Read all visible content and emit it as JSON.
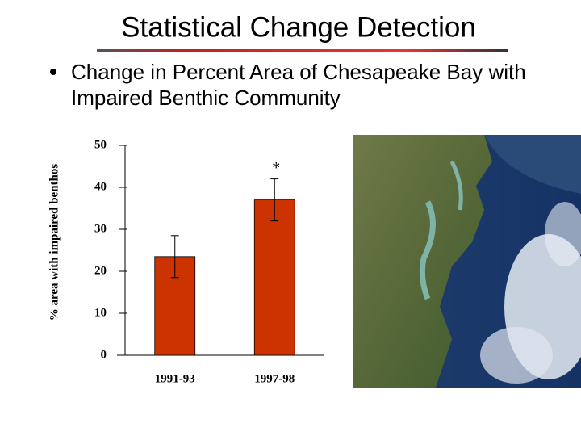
{
  "header": {
    "title": "Statistical Change Detection",
    "bullet_lines": [
      "Change in Percent Area of Chesapeake Bay with",
      "Impaired Benthic Community"
    ]
  },
  "chart_data": {
    "type": "bar",
    "y_label": "% area with impaired benthos",
    "categories": [
      "1991-93",
      "1997-98"
    ],
    "values": [
      23.5,
      37
    ],
    "errors": [
      5,
      5
    ],
    "color": "#cc3300",
    "ylim": [
      0,
      50
    ],
    "yticks": [
      0,
      10,
      20,
      30,
      40,
      50
    ],
    "annotation": "*"
  }
}
